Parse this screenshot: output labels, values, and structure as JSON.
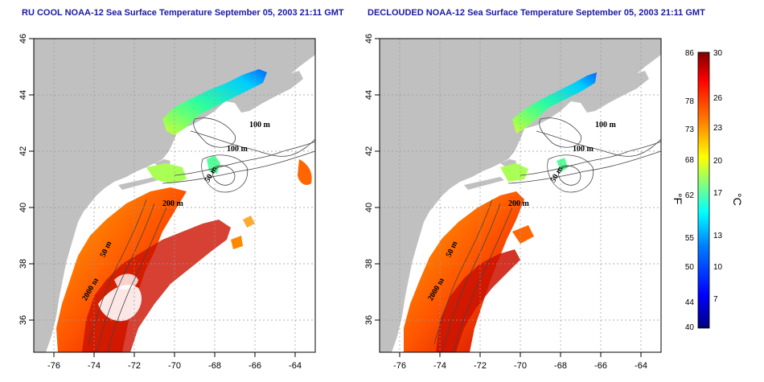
{
  "titles": {
    "left": "RU COOL NOAA-12 Sea Surface Temperature September 05, 2003 21:11 GMT",
    "right": "DECLOUDED NOAA-12 Sea Surface Temperature September 05, 2003 21:11 GMT"
  },
  "map": {
    "lon_ticks": [
      "-76",
      "-74",
      "-72",
      "-70",
      "-68",
      "-66",
      "-64"
    ],
    "lat_ticks": [
      "36",
      "38",
      "40",
      "42",
      "44",
      "46"
    ],
    "lon_range": [
      -77,
      -63
    ],
    "lat_range": [
      35,
      46
    ],
    "contour_labels": [
      "100 m",
      "100 m",
      "50 m",
      "200 m",
      "50 m",
      "2000 m"
    ],
    "land_color": "#c0c0c0",
    "contour_color": "#444444"
  },
  "colorbar": {
    "fahrenheit_ticks": [
      "86",
      "78",
      "73",
      "68",
      "62",
      "55",
      "50",
      "44",
      "40"
    ],
    "celsius_ticks": [
      "30",
      "26",
      "23",
      "20",
      "17",
      "13",
      "10",
      "7"
    ],
    "fahrenheit_unit": "°F",
    "celsius_unit": "°C",
    "colors": [
      "#00007f",
      "#0000ff",
      "#007fff",
      "#00ffff",
      "#7fff7f",
      "#ffff00",
      "#ff7f00",
      "#ff0000",
      "#7f0000"
    ]
  }
}
